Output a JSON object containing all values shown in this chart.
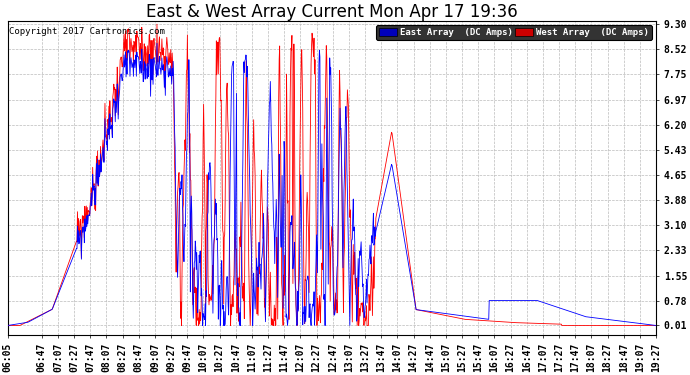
{
  "title": "East & West Array Current Mon Apr 17 19:36",
  "copyright": "Copyright 2017 Cartronics.com",
  "legend_east": "East Array  (DC Amps)",
  "legend_west": "West Array  (DC Amps)",
  "east_color": "#0000FF",
  "west_color": "#FF0000",
  "legend_east_bg": "#0000BB",
  "legend_west_bg": "#CC0000",
  "yticks": [
    0.01,
    0.78,
    1.55,
    2.33,
    3.1,
    3.88,
    4.65,
    5.43,
    6.2,
    6.97,
    7.75,
    8.52,
    9.3
  ],
  "ymin": 0.01,
  "ymax": 9.3,
  "background_color": "#FFFFFF",
  "plot_bg_color": "#FFFFFF",
  "grid_color": "#BBBBBB",
  "title_fontsize": 12,
  "tick_fontsize": 7,
  "xtick_labels": [
    "06:05",
    "06:47",
    "07:07",
    "07:27",
    "07:47",
    "08:07",
    "08:27",
    "08:47",
    "09:07",
    "09:27",
    "09:47",
    "10:07",
    "10:27",
    "10:47",
    "11:07",
    "11:27",
    "11:47",
    "12:07",
    "12:27",
    "12:47",
    "13:07",
    "13:27",
    "13:47",
    "14:07",
    "14:27",
    "14:47",
    "15:07",
    "15:27",
    "15:47",
    "16:07",
    "16:27",
    "16:47",
    "17:07",
    "17:27",
    "17:47",
    "18:07",
    "18:27",
    "18:47",
    "19:07",
    "19:27"
  ]
}
